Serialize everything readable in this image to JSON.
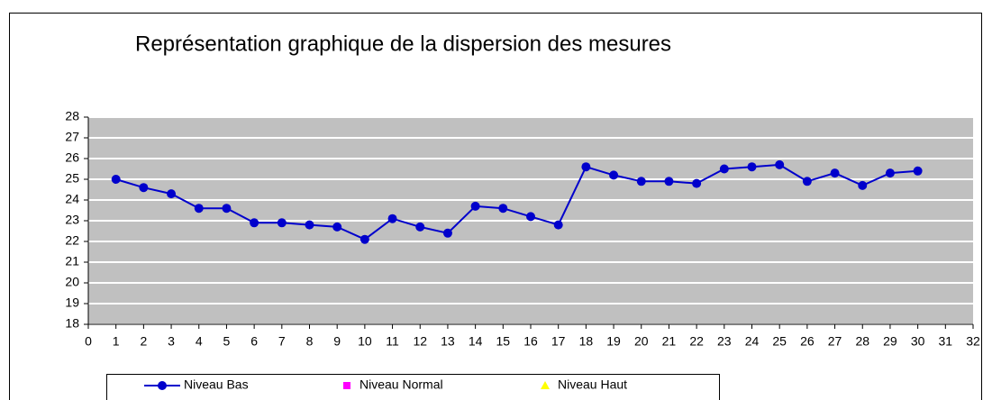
{
  "chart_data": {
    "type": "line",
    "title": "Représentation graphique de la dispersion des mesures",
    "x": [
      1,
      2,
      3,
      4,
      5,
      6,
      7,
      8,
      9,
      10,
      11,
      12,
      13,
      14,
      15,
      16,
      17,
      18,
      19,
      20,
      21,
      22,
      23,
      24,
      25,
      26,
      27,
      28,
      29,
      30
    ],
    "series": [
      {
        "name": "Niveau Bas",
        "color": "#0000cc",
        "marker": "circle",
        "values": [
          25.0,
          24.6,
          24.3,
          23.6,
          23.6,
          22.9,
          22.9,
          22.8,
          22.7,
          22.1,
          23.1,
          22.7,
          22.4,
          23.7,
          23.6,
          23.2,
          22.8,
          25.6,
          25.2,
          24.9,
          24.9,
          24.8,
          25.5,
          25.6,
          25.7,
          24.9,
          25.3,
          24.7,
          25.3,
          25.4
        ]
      },
      {
        "name": "Niveau Normal",
        "color": "#ff00ff",
        "marker": "square",
        "values": [
          null,
          null,
          null,
          null,
          null,
          null,
          null,
          null,
          null,
          null,
          null,
          null,
          null,
          null,
          null,
          null,
          null,
          null,
          null,
          null,
          null,
          null,
          null,
          null,
          null,
          null,
          null,
          null,
          null,
          null
        ]
      },
      {
        "name": "Niveau Haut",
        "color": "#ffff00",
        "marker": "triangle",
        "values": [
          null,
          null,
          null,
          null,
          null,
          null,
          null,
          null,
          null,
          null,
          null,
          null,
          null,
          null,
          null,
          null,
          null,
          null,
          null,
          null,
          null,
          null,
          null,
          null,
          null,
          null,
          null,
          null,
          null,
          null
        ]
      }
    ],
    "xlim": [
      0,
      32
    ],
    "xticks": [
      0,
      1,
      2,
      3,
      4,
      5,
      6,
      7,
      8,
      9,
      10,
      11,
      12,
      13,
      14,
      15,
      16,
      17,
      18,
      19,
      20,
      21,
      22,
      23,
      24,
      25,
      26,
      27,
      28,
      29,
      30,
      31,
      32
    ],
    "ylim": [
      18,
      28
    ],
    "yticks": [
      18,
      19,
      20,
      21,
      22,
      23,
      24,
      25,
      26,
      27,
      28
    ],
    "grid": true,
    "plot_background": "#c0c0c0",
    "legend": "bottom"
  }
}
